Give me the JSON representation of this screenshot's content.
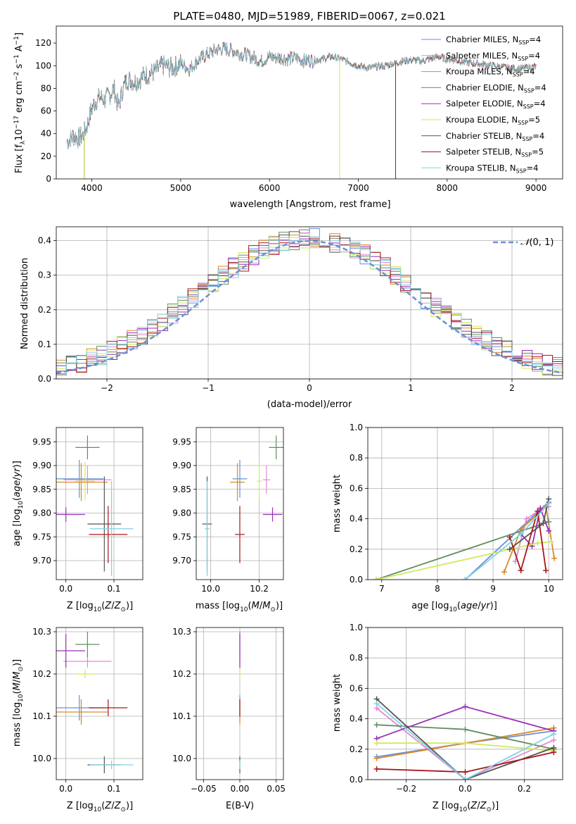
{
  "figure": {
    "title": "PLATE=0480, MJD=51989, FIBERID=0067, z=0.021"
  },
  "colors": {
    "Chabrier MILES": "#6a8fd8",
    "Salpeter MILES": "#e58ad0",
    "Kroupa MILES": "#d98a2a",
    "Chabrier ELODIE": "#5f8f5f",
    "Salpeter ELODIE": "#9a2fb8",
    "Kroupa ELODIE": "#d2ea5a",
    "Chabrier STELIB": "#555555",
    "Salpeter STELIB": "#a8171c",
    "Kroupa STELIB": "#7fd3e3"
  },
  "chart_data": [
    {
      "id": "spectrum",
      "type": "line",
      "xlabel": "wavelength [Angstrom, rest frame]",
      "ylabel": "Flux [f_λ10^-17 erg cm^-2 s^-1 A^-1]",
      "xlim": [
        3600,
        9300
      ],
      "ylim": [
        0,
        135
      ],
      "xticks": [
        4000,
        5000,
        6000,
        7000,
        8000,
        9000
      ],
      "yticks": [
        0,
        20,
        40,
        60,
        80,
        100,
        120
      ],
      "grid": false,
      "legend_position": "top-right",
      "continuum_x": [
        3700,
        3800,
        3850,
        3900,
        3950,
        4000,
        4050,
        4100,
        4150,
        4200,
        4250,
        4300,
        4350,
        4400,
        4500,
        4600,
        4700,
        4800,
        4900,
        5000,
        5100,
        5200,
        5300,
        5400,
        5500,
        5600,
        5700,
        5800,
        5900,
        6000,
        6100,
        6200,
        6300,
        6400,
        6500,
        6600,
        6700,
        6800,
        6900,
        7000,
        7100,
        7200,
        7300,
        7400,
        7500,
        7600,
        7700,
        7800,
        7900,
        8000,
        8100,
        8200,
        8300,
        8400,
        8500,
        8600,
        8700,
        8800,
        8900,
        9000
      ],
      "continuum_y": [
        32,
        38,
        36,
        38,
        48,
        62,
        70,
        72,
        70,
        74,
        80,
        63,
        80,
        88,
        86,
        92,
        94,
        100,
        98,
        102,
        97,
        105,
        110,
        114,
        115,
        113,
        110,
        108,
        104,
        108,
        107,
        106,
        107,
        104,
        105,
        106,
        108,
        106,
        103,
        100,
        98,
        99,
        100,
        102,
        104,
        105,
        104,
        106,
        108,
        106,
        105,
        103,
        102,
        101,
        100,
        99,
        98,
        97,
        98,
        99
      ],
      "series": [
        {
          "name": "Chabrier MILES, N_SSP=4",
          "label_main": "Chabrier MILES, N",
          "label_sub": "SSP",
          "label_tail": "=4"
        },
        {
          "name": "Salpeter MILES, N_SSP=4",
          "label_main": "Salpeter MILES, N",
          "label_sub": "SSP",
          "label_tail": "=4"
        },
        {
          "name": "Kroupa MILES, N_SSP=4",
          "label_main": "Kroupa MILES, N",
          "label_sub": "SSP",
          "label_tail": "=4"
        },
        {
          "name": "Chabrier ELODIE, N_SSP=4",
          "label_main": "Chabrier ELODIE, N",
          "label_sub": "SSP",
          "label_tail": "=4"
        },
        {
          "name": "Salpeter ELODIE, N_SSP=4",
          "label_main": "Salpeter ELODIE, N",
          "label_sub": "SSP",
          "label_tail": "=4"
        },
        {
          "name": "Kroupa ELODIE, N_SSP=5",
          "label_main": "Kroupa ELODIE, N",
          "label_sub": "SSP",
          "label_tail": "=5"
        },
        {
          "name": "Chabrier STELIB, N_SSP=4",
          "label_main": "Chabrier STELIB, N",
          "label_sub": "SSP",
          "label_tail": "=4"
        },
        {
          "name": "Salpeter STELIB, N_SSP=5",
          "label_main": "Salpeter STELIB, N",
          "label_sub": "SSP",
          "label_tail": "=5"
        },
        {
          "name": "Kroupa STELIB, N_SSP=4",
          "label_main": "Kroupa STELIB, N",
          "label_sub": "SSP",
          "label_tail": "=4"
        }
      ],
      "drops": [
        {
          "model": "Chabrier STELIB",
          "x": 3915
        },
        {
          "model": "Kroupa ELODIE",
          "x": 3915
        },
        {
          "model": "Kroupa ELODIE",
          "x": 6790
        },
        {
          "model": "Salpeter STELIB",
          "x": 7420
        }
      ]
    },
    {
      "id": "residuals",
      "type": "histogram",
      "xlabel": "(data-model)/error",
      "ylabel": "Normed distribution",
      "xlim": [
        -2.5,
        2.5
      ],
      "ylim": [
        0,
        0.44
      ],
      "xticks": [
        -2,
        -1,
        0,
        1,
        2
      ],
      "yticks": [
        0.0,
        0.1,
        0.2,
        0.3,
        0.4
      ],
      "grid": true,
      "legend_position": "top-right",
      "legend_label": "N(0, 1)",
      "bin_width": 0.1
    },
    {
      "id": "age-vs-z",
      "type": "errorbar",
      "xlabel": "Z [log10(Z/Z⊙)]",
      "ylabel": "age [log10(age/yr)]",
      "xlim": [
        -0.02,
        0.16
      ],
      "ylim": [
        9.66,
        9.98
      ],
      "xticks": [
        0.0,
        0.1
      ],
      "yticks": [
        9.7,
        9.75,
        9.8,
        9.85,
        9.9,
        9.95
      ],
      "grid": true
    },
    {
      "id": "age-vs-mass",
      "type": "errorbar",
      "xlabel": "mass [log10(M/M⊙)]",
      "xlim": [
        9.94,
        10.3
      ],
      "ylim": [
        9.66,
        9.98
      ],
      "xticks": [
        10.0,
        10.2
      ],
      "yticks": [
        9.7,
        9.75,
        9.8,
        9.85,
        9.9,
        9.95
      ],
      "grid": true
    },
    {
      "id": "weight-vs-age",
      "type": "line",
      "xlabel": "age [log10(age/yr)]",
      "ylabel": "mass weight",
      "xlim": [
        6.75,
        10.25
      ],
      "ylim": [
        0,
        1.0
      ],
      "xticks": [
        7,
        8,
        9,
        10
      ],
      "yticks": [
        0.0,
        0.2,
        0.4,
        0.6,
        0.8,
        1.0
      ],
      "grid": true
    },
    {
      "id": "mass-vs-z",
      "type": "errorbar",
      "xlabel": "Z [log10(Z/Z⊙)]",
      "ylabel": "mass [log10(M/M⊙)]",
      "xlim": [
        -0.02,
        0.16
      ],
      "ylim": [
        9.95,
        10.31
      ],
      "xticks": [
        0.0,
        0.1
      ],
      "yticks": [
        10.0,
        10.1,
        10.2,
        10.3
      ],
      "grid": true
    },
    {
      "id": "mass-vs-ebv",
      "type": "errorbar",
      "xlabel": "E(B-V)",
      "xlim": [
        -0.06,
        0.06
      ],
      "ylim": [
        9.95,
        10.31
      ],
      "xticks": [
        -0.05,
        0.0,
        0.05
      ],
      "yticks": [
        10.0,
        10.1,
        10.2,
        10.3
      ],
      "grid": true
    },
    {
      "id": "weight-vs-z",
      "type": "line",
      "xlabel": "Z [log10(Z/Z⊙)]",
      "ylabel": "mass weight",
      "xlim": [
        -0.33,
        0.33
      ],
      "ylim": [
        0,
        1.0
      ],
      "xticks": [
        -0.2,
        0.0,
        0.2
      ],
      "yticks": [
        0.0,
        0.2,
        0.4,
        0.6,
        0.8,
        1.0
      ],
      "grid": true
    }
  ],
  "models": [
    {
      "key": "Chabrier MILES",
      "Z": 0.028,
      "Z_err": 0.05,
      "age": 9.872,
      "age_err": 0.04,
      "mass": 10.12,
      "mass_err": 0.03,
      "ebv": 0.0,
      "age_w": [
        [
          8.5,
          0.0
        ],
        [
          9.85,
          0.46
        ],
        [
          10.0,
          0.51
        ]
      ],
      "z_w": [
        [
          -0.3,
          0.15
        ],
        [
          0.0,
          0.24
        ],
        [
          0.3,
          0.32
        ]
      ]
    },
    {
      "key": "Salpeter MILES",
      "Z": 0.045,
      "Z_err": 0.05,
      "age": 9.87,
      "age_err": 0.03,
      "mass": 10.23,
      "mass_err": 0.015,
      "ebv": 0.0,
      "age_w": [
        [
          9.4,
          0.12
        ],
        [
          9.6,
          0.4
        ],
        [
          9.9,
          0.47
        ],
        [
          10.0,
          0.48
        ]
      ],
      "z_w": [
        [
          -0.3,
          0.47
        ],
        [
          0.0,
          0.0
        ],
        [
          0.3,
          0.26
        ]
      ]
    },
    {
      "key": "Kroupa MILES",
      "Z": 0.032,
      "Z_err": 0.055,
      "age": 9.865,
      "age_err": 0.04,
      "mass": 10.11,
      "mass_err": 0.03,
      "ebv": 0.0,
      "age_w": [
        [
          9.2,
          0.05
        ],
        [
          9.5,
          0.33
        ],
        [
          9.95,
          0.48
        ],
        [
          10.1,
          0.14
        ]
      ],
      "z_w": [
        [
          -0.3,
          0.14
        ],
        [
          0.0,
          0.24
        ],
        [
          0.3,
          0.34
        ]
      ]
    },
    {
      "key": "Chabrier ELODIE",
      "Z": 0.045,
      "Z_err": 0.025,
      "age": 9.938,
      "age_err": 0.025,
      "mass": 10.27,
      "mass_err": 0.03,
      "ebv": 0.0,
      "age_w": [
        [
          6.9,
          0.0
        ],
        [
          10.0,
          0.38
        ]
      ],
      "z_w": [
        [
          -0.3,
          0.36
        ],
        [
          0.0,
          0.33
        ],
        [
          0.3,
          0.2
        ]
      ]
    },
    {
      "key": "Salpeter ELODIE",
      "Z": 0.0,
      "Z_err": 0.04,
      "age": 9.797,
      "age_err": 0.015,
      "mass": 10.255,
      "mass_err": 0.04,
      "ebv": 0.0,
      "age_w": [
        [
          9.5,
          0.3
        ],
        [
          9.7,
          0.22
        ],
        [
          9.85,
          0.47
        ],
        [
          10.0,
          0.32
        ]
      ],
      "z_w": [
        [
          -0.3,
          0.27
        ],
        [
          0.0,
          0.48
        ],
        [
          0.3,
          0.32
        ]
      ]
    },
    {
      "key": "Kroupa ELODIE",
      "Z": 0.04,
      "Z_err": 0.02,
      "age": 9.867,
      "age_err": 0.04,
      "mass": 10.2,
      "mass_err": 0.01,
      "ebv": 0.0,
      "age_w": [
        [
          6.9,
          0.0
        ],
        [
          9.8,
          0.24
        ],
        [
          10.05,
          0.25
        ]
      ],
      "z_w": [
        [
          -0.3,
          0.24
        ],
        [
          0.0,
          0.24
        ],
        [
          0.3,
          0.19
        ]
      ]
    },
    {
      "key": "Chabrier STELIB",
      "Z": 0.08,
      "Z_err": 0.035,
      "age": 9.777,
      "age_err": 0.1,
      "mass": 9.985,
      "mass_err": 0.02,
      "ebv": 0.0,
      "age_w": [
        [
          9.3,
          0.2
        ],
        [
          9.9,
          0.37
        ],
        [
          10.0,
          0.53
        ]
      ],
      "z_w": [
        [
          -0.3,
          0.53
        ],
        [
          0.0,
          0.0
        ],
        [
          0.3,
          0.21
        ]
      ]
    },
    {
      "key": "Salpeter STELIB",
      "Z": 0.088,
      "Z_err": 0.04,
      "age": 9.755,
      "age_err": 0.06,
      "mass": 10.12,
      "mass_err": 0.02,
      "ebv": 0.0,
      "age_w": [
        [
          9.3,
          0.28
        ],
        [
          9.5,
          0.06
        ],
        [
          9.8,
          0.45
        ],
        [
          9.95,
          0.06
        ]
      ],
      "z_w": [
        [
          -0.3,
          0.07
        ],
        [
          0.0,
          0.05
        ],
        [
          0.3,
          0.18
        ]
      ]
    },
    {
      "key": "Kroupa STELIB",
      "Z": 0.095,
      "Z_err": 0.045,
      "age": 9.767,
      "age_err": 0.1,
      "mass": 9.985,
      "mass_err": 0.01,
      "ebv": 0.0,
      "age_w": [
        [
          8.5,
          0.0
        ],
        [
          9.5,
          0.3
        ],
        [
          10.0,
          0.5
        ]
      ],
      "z_w": [
        [
          -0.3,
          0.5
        ],
        [
          0.0,
          0.0
        ],
        [
          0.3,
          0.3
        ]
      ]
    }
  ]
}
